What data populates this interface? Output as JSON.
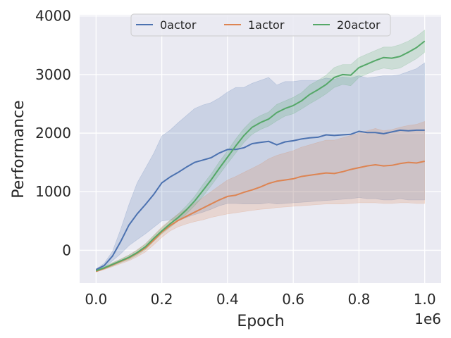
{
  "chart_data": {
    "type": "line",
    "title": "",
    "xlabel": "Epoch",
    "ylabel": "Performance",
    "x_scale_label": "1e6",
    "xlim": [
      -0.05,
      1.05
    ],
    "ylim": [
      -560,
      4020
    ],
    "x_ticks": [
      0.0,
      0.2,
      0.4,
      0.6,
      0.8,
      1.0
    ],
    "x_tick_labels": [
      "0.0",
      "0.2",
      "0.4",
      "0.6",
      "0.8",
      "1.0"
    ],
    "y_ticks": [
      0,
      1000,
      2000,
      3000,
      4000
    ],
    "y_tick_labels": [
      "0",
      "1000",
      "2000",
      "3000",
      "4000"
    ],
    "grid": true,
    "legend_position": "top-center",
    "x": [
      0.0,
      0.025,
      0.05,
      0.075,
      0.1,
      0.125,
      0.15,
      0.175,
      0.2,
      0.225,
      0.25,
      0.275,
      0.3,
      0.325,
      0.35,
      0.375,
      0.4,
      0.425,
      0.45,
      0.475,
      0.5,
      0.525,
      0.55,
      0.575,
      0.6,
      0.625,
      0.65,
      0.675,
      0.7,
      0.725,
      0.75,
      0.775,
      0.8,
      0.825,
      0.85,
      0.875,
      0.9,
      0.925,
      0.95,
      0.975,
      1.0
    ],
    "series": [
      {
        "name": "0actor",
        "color": "#4c72b0",
        "values": [
          -330,
          -260,
          -100,
          150,
          430,
          620,
          780,
          950,
          1150,
          1250,
          1330,
          1420,
          1500,
          1540,
          1580,
          1660,
          1720,
          1720,
          1750,
          1820,
          1840,
          1860,
          1800,
          1850,
          1870,
          1900,
          1920,
          1930,
          1970,
          1960,
          1970,
          1980,
          2030,
          2010,
          2010,
          1990,
          2020,
          2050,
          2040,
          2050,
          2050
        ],
        "lower": [
          -340,
          -290,
          -180,
          -60,
          80,
          180,
          280,
          390,
          500,
          520,
          500,
          560,
          610,
          650,
          700,
          760,
          800,
          800,
          790,
          790,
          790,
          810,
          790,
          800,
          810,
          820,
          830,
          840,
          850,
          860,
          870,
          880,
          900,
          880,
          880,
          860,
          860,
          880,
          860,
          860,
          860
        ],
        "upper": [
          -320,
          -220,
          -20,
          360,
          780,
          1150,
          1400,
          1650,
          1950,
          2050,
          2180,
          2300,
          2420,
          2480,
          2520,
          2600,
          2700,
          2780,
          2780,
          2850,
          2900,
          2950,
          2820,
          2880,
          2880,
          2900,
          2900,
          2900,
          2940,
          2920,
          2960,
          2940,
          2980,
          2940,
          2960,
          2980,
          2980,
          3000,
          3050,
          3100,
          3200
        ]
      },
      {
        "name": "1actor",
        "color": "#dd8452",
        "values": [
          -360,
          -310,
          -250,
          -190,
          -130,
          -50,
          40,
          170,
          310,
          420,
          510,
          580,
          650,
          720,
          790,
          860,
          920,
          940,
          990,
          1030,
          1080,
          1140,
          1180,
          1200,
          1220,
          1260,
          1280,
          1300,
          1320,
          1310,
          1340,
          1380,
          1410,
          1440,
          1460,
          1440,
          1450,
          1480,
          1500,
          1490,
          1520
        ],
        "lower": [
          -370,
          -330,
          -280,
          -230,
          -180,
          -110,
          -30,
          90,
          220,
          330,
          400,
          450,
          490,
          520,
          560,
          590,
          620,
          640,
          660,
          680,
          700,
          710,
          730,
          740,
          750,
          760,
          770,
          780,
          790,
          790,
          790,
          800,
          810,
          810,
          810,
          800,
          800,
          810,
          810,
          800,
          800
        ],
        "upper": [
          -350,
          -290,
          -220,
          -150,
          -80,
          10,
          110,
          250,
          400,
          510,
          620,
          710,
          800,
          900,
          1000,
          1100,
          1200,
          1260,
          1330,
          1400,
          1470,
          1560,
          1620,
          1660,
          1700,
          1760,
          1800,
          1840,
          1880,
          1880,
          1920,
          1960,
          2000,
          2040,
          2080,
          2040,
          2060,
          2100,
          2130,
          2150,
          2200
        ]
      },
      {
        "name": "20actor",
        "color": "#55a868",
        "values": [
          -350,
          -300,
          -240,
          -180,
          -120,
          -40,
          60,
          200,
          330,
          450,
          560,
          690,
          840,
          1020,
          1200,
          1400,
          1590,
          1780,
          1960,
          2100,
          2180,
          2240,
          2350,
          2420,
          2470,
          2550,
          2660,
          2740,
          2830,
          2950,
          3000,
          2990,
          3120,
          3180,
          3240,
          3290,
          3280,
          3310,
          3380,
          3460,
          3570
        ],
        "lower": [
          -360,
          -320,
          -270,
          -210,
          -160,
          -80,
          10,
          150,
          280,
          390,
          500,
          620,
          760,
          920,
          1100,
          1290,
          1480,
          1660,
          1840,
          1980,
          2060,
          2120,
          2210,
          2290,
          2330,
          2410,
          2500,
          2580,
          2670,
          2780,
          2830,
          2810,
          2950,
          3010,
          3070,
          3110,
          3090,
          3110,
          3190,
          3270,
          3380
        ],
        "upper": [
          -340,
          -280,
          -210,
          -150,
          -80,
          0,
          110,
          250,
          380,
          510,
          620,
          760,
          920,
          1120,
          1300,
          1510,
          1700,
          1900,
          2080,
          2220,
          2300,
          2360,
          2490,
          2550,
          2610,
          2690,
          2820,
          2900,
          2990,
          3120,
          3170,
          3170,
          3290,
          3350,
          3410,
          3470,
          3470,
          3510,
          3570,
          3650,
          3760
        ]
      }
    ]
  }
}
